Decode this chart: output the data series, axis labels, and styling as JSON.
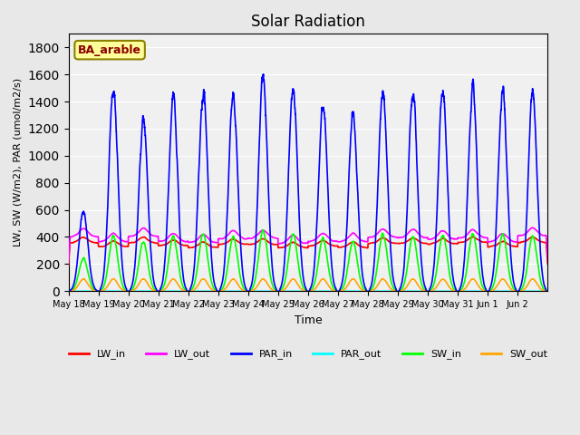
{
  "title": "Solar Radiation",
  "ylabel": "LW, SW (W/m2), PAR (umol/m2/s)",
  "xlabel": "Time",
  "legend_label": "BA_arable",
  "legend_label_color": "#8B0000",
  "legend_box_color": "#FFFF99",
  "legend_box_edge": "#8B8000",
  "ylim": [
    0,
    1900
  ],
  "yticks": [
    0,
    200,
    400,
    600,
    800,
    1000,
    1200,
    1400,
    1600,
    1800
  ],
  "bg_color": "#E8E8E8",
  "plot_bg_color": "#F0F0F0",
  "series": {
    "LW_in": {
      "color": "#FF0000",
      "lw": 1.2
    },
    "LW_out": {
      "color": "#FF00FF",
      "lw": 1.2
    },
    "PAR_in": {
      "color": "#0000FF",
      "lw": 1.2
    },
    "PAR_out": {
      "color": "#00FFFF",
      "lw": 1.2
    },
    "SW_in": {
      "color": "#00FF00",
      "lw": 1.2
    },
    "SW_out": {
      "color": "#FFA500",
      "lw": 1.2
    }
  },
  "n_days": 16,
  "xtick_labels": [
    "May 18",
    "May 19",
    "May 20",
    "May 21",
    "May 22",
    "May 23",
    "May 24",
    "May 25",
    "May 26",
    "May 27",
    "May 28",
    "May 29",
    "May 30",
    "May 31",
    "Jun 1",
    "Jun 2"
  ]
}
